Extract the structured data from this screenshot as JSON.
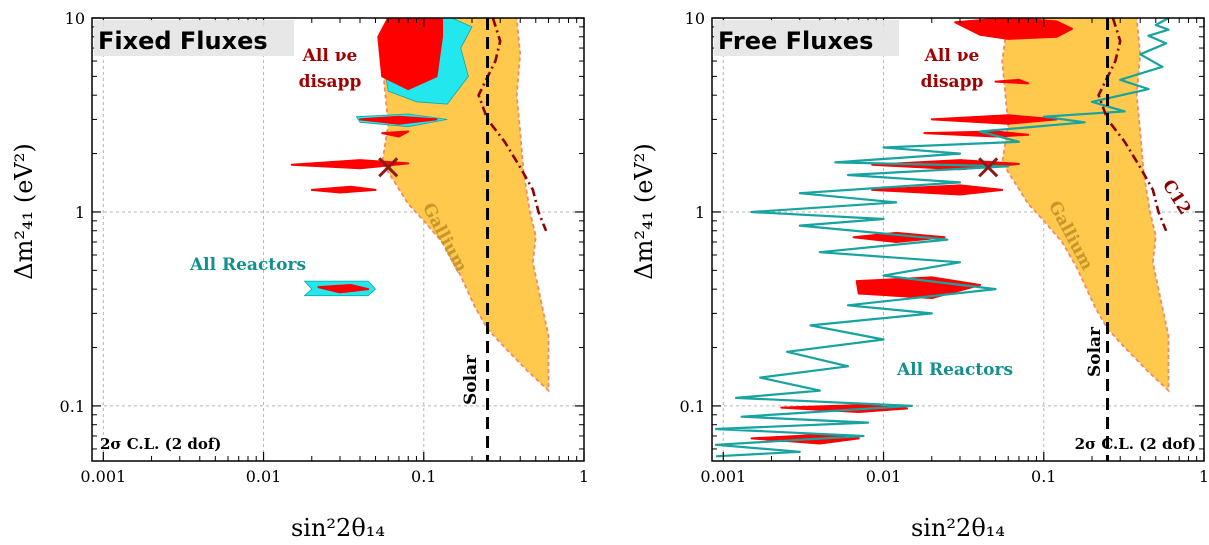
{
  "colors": {
    "gallium_fill": "#ffc94d",
    "gallium_edge": "#f08a6a",
    "disapp_fill": "#ff0000",
    "reactor_fill": "#22e8ee",
    "reactor_line": "#17a3a0",
    "solar_line": "#000000",
    "c12_line": "#8b0000",
    "best_fit": "#8b1a1a",
    "disapp_text": "#a00000",
    "reactor_text": "#138f8f",
    "gallium_text": "#c8962a"
  },
  "chart_data": [
    {
      "type": "contour",
      "title": "Fixed Fluxes",
      "xlabel": "sin²2θ₁₄",
      "ylabel": "Δm²₄₁ (eV²)",
      "xscale": "log",
      "yscale": "log",
      "xlim": [
        0.00085,
        1.0
      ],
      "ylim": [
        0.052,
        10
      ],
      "xticks": [
        "0.001",
        "0.01",
        "0.1",
        "1"
      ],
      "yticks": [
        "0.1",
        "1",
        "10"
      ],
      "grid": true,
      "cl_label": "2σ C.L. (2 dof)",
      "annotations": {
        "disapp_line1": "All νe",
        "disapp_line2": "disapp",
        "reactors": "All Reactors",
        "gallium": "Gallium",
        "solar": "Solar",
        "c12": ""
      },
      "solar_limit": 0.25,
      "best_fit": [
        0.06,
        1.7
      ],
      "gallium_region": [
        [
          0.06,
          10
        ],
        [
          0.055,
          6
        ],
        [
          0.06,
          2.8
        ],
        [
          0.055,
          1.8
        ],
        [
          0.08,
          1.1
        ],
        [
          0.1,
          0.9
        ],
        [
          0.13,
          0.7
        ],
        [
          0.16,
          0.52
        ],
        [
          0.21,
          0.32
        ],
        [
          0.25,
          0.25
        ],
        [
          0.32,
          0.2
        ],
        [
          0.45,
          0.15
        ],
        [
          0.6,
          0.12
        ],
        [
          0.6,
          0.15
        ],
        [
          0.6,
          0.23
        ],
        [
          0.52,
          0.4
        ],
        [
          0.48,
          0.55
        ],
        [
          0.5,
          0.75
        ],
        [
          0.46,
          1.0
        ],
        [
          0.42,
          1.6
        ],
        [
          0.4,
          2.6
        ],
        [
          0.38,
          4
        ],
        [
          0.4,
          6.5
        ],
        [
          0.38,
          10
        ]
      ],
      "c12_curve": [
        [
          0.27,
          10
        ],
        [
          0.3,
          7.6
        ],
        [
          0.28,
          6
        ],
        [
          0.22,
          4
        ],
        [
          0.25,
          3
        ],
        [
          0.32,
          2.3
        ],
        [
          0.4,
          1.7
        ],
        [
          0.48,
          1.3
        ],
        [
          0.52,
          1.0
        ],
        [
          0.58,
          0.8
        ]
      ],
      "reactor_regions": [
        [
          [
            0.06,
            10
          ],
          [
            0.15,
            10
          ],
          [
            0.2,
            9
          ],
          [
            0.17,
            7
          ],
          [
            0.19,
            5
          ],
          [
            0.14,
            3.6
          ],
          [
            0.09,
            3.7
          ],
          [
            0.06,
            4.2
          ],
          [
            0.055,
            6.5
          ]
        ],
        [
          [
            0.038,
            3.1
          ],
          [
            0.08,
            3.2
          ],
          [
            0.14,
            3.0
          ],
          [
            0.08,
            2.75
          ],
          [
            0.04,
            2.9
          ]
        ],
        [
          [
            0.018,
            0.44
          ],
          [
            0.045,
            0.44
          ],
          [
            0.05,
            0.4
          ],
          [
            0.045,
            0.37
          ],
          [
            0.018,
            0.37
          ],
          [
            0.02,
            0.4
          ]
        ]
      ],
      "disapp_regions": [
        [
          [
            0.06,
            10
          ],
          [
            0.13,
            10
          ],
          [
            0.13,
            8
          ],
          [
            0.12,
            5
          ],
          [
            0.08,
            4.3
          ],
          [
            0.055,
            5
          ],
          [
            0.052,
            8
          ]
        ],
        [
          [
            0.04,
            3.0
          ],
          [
            0.07,
            3.1
          ],
          [
            0.12,
            3.0
          ],
          [
            0.07,
            2.85
          ]
        ],
        [
          [
            0.055,
            2.55
          ],
          [
            0.08,
            2.6
          ],
          [
            0.07,
            2.45
          ]
        ],
        [
          [
            0.015,
            1.75
          ],
          [
            0.04,
            1.85
          ],
          [
            0.08,
            1.78
          ],
          [
            0.04,
            1.68
          ]
        ],
        [
          [
            0.02,
            1.3
          ],
          [
            0.035,
            1.35
          ],
          [
            0.05,
            1.3
          ],
          [
            0.03,
            1.26
          ]
        ],
        [
          [
            0.022,
            0.41
          ],
          [
            0.035,
            0.42
          ],
          [
            0.045,
            0.4
          ],
          [
            0.03,
            0.385
          ]
        ]
      ],
      "reactor_curve": []
    },
    {
      "type": "contour",
      "title": "Free Fluxes",
      "xlabel": "sin²2θ₁₄",
      "ylabel": "Δm²₄₁ (eV²)",
      "xscale": "log",
      "yscale": "log",
      "xlim": [
        0.00085,
        1.0
      ],
      "ylim": [
        0.052,
        10
      ],
      "xticks": [
        "0.001",
        "0.01",
        "0.1",
        "1"
      ],
      "yticks": [
        "0.1",
        "1",
        "10"
      ],
      "grid": true,
      "cl_label": "2σ C.L. (2 dof)",
      "annotations": {
        "disapp_line1": "All νe",
        "disapp_line2": "disapp",
        "reactors": "All Reactors",
        "gallium": "Gallium",
        "solar": "Solar",
        "c12": "C12"
      },
      "solar_limit": 0.25,
      "best_fit": [
        0.045,
        1.7
      ],
      "gallium_region": [
        [
          0.06,
          10
        ],
        [
          0.055,
          6
        ],
        [
          0.06,
          2.8
        ],
        [
          0.055,
          1.8
        ],
        [
          0.08,
          1.1
        ],
        [
          0.1,
          0.9
        ],
        [
          0.13,
          0.7
        ],
        [
          0.16,
          0.52
        ],
        [
          0.21,
          0.32
        ],
        [
          0.25,
          0.25
        ],
        [
          0.32,
          0.2
        ],
        [
          0.45,
          0.15
        ],
        [
          0.6,
          0.12
        ],
        [
          0.6,
          0.15
        ],
        [
          0.6,
          0.23
        ],
        [
          0.52,
          0.4
        ],
        [
          0.48,
          0.55
        ],
        [
          0.5,
          0.75
        ],
        [
          0.46,
          1.0
        ],
        [
          0.42,
          1.6
        ],
        [
          0.4,
          2.6
        ],
        [
          0.38,
          4
        ],
        [
          0.4,
          6.5
        ],
        [
          0.38,
          10
        ]
      ],
      "c12_curve": [
        [
          0.27,
          10
        ],
        [
          0.3,
          7.6
        ],
        [
          0.28,
          6
        ],
        [
          0.22,
          4
        ],
        [
          0.25,
          3
        ],
        [
          0.32,
          2.3
        ],
        [
          0.4,
          1.7
        ],
        [
          0.48,
          1.3
        ],
        [
          0.52,
          1.0
        ],
        [
          0.58,
          0.8
        ]
      ],
      "reactor_regions": [],
      "disapp_regions": [
        [
          [
            0.028,
            9.5
          ],
          [
            0.06,
            10
          ],
          [
            0.12,
            9.6
          ],
          [
            0.15,
            8.8
          ],
          [
            0.12,
            8.0
          ],
          [
            0.06,
            7.8
          ],
          [
            0.04,
            8.2
          ]
        ],
        [
          [
            0.05,
            4.7
          ],
          [
            0.07,
            4.8
          ],
          [
            0.08,
            4.6
          ]
        ],
        [
          [
            0.02,
            3.0
          ],
          [
            0.06,
            3.15
          ],
          [
            0.12,
            3.0
          ],
          [
            0.06,
            2.85
          ]
        ],
        [
          [
            0.018,
            2.55
          ],
          [
            0.05,
            2.6
          ],
          [
            0.08,
            2.5
          ],
          [
            0.05,
            2.45
          ]
        ],
        [
          [
            0.0085,
            1.75
          ],
          [
            0.03,
            1.85
          ],
          [
            0.07,
            1.77
          ],
          [
            0.03,
            1.66
          ]
        ],
        [
          [
            0.0085,
            1.3
          ],
          [
            0.03,
            1.37
          ],
          [
            0.055,
            1.3
          ],
          [
            0.03,
            1.23
          ]
        ],
        [
          [
            0.0065,
            0.74
          ],
          [
            0.012,
            0.78
          ],
          [
            0.024,
            0.74
          ],
          [
            0.012,
            0.7
          ]
        ],
        [
          [
            0.0068,
            0.44
          ],
          [
            0.02,
            0.46
          ],
          [
            0.04,
            0.42
          ],
          [
            0.02,
            0.36
          ],
          [
            0.007,
            0.38
          ]
        ],
        [
          [
            0.0023,
            0.098
          ],
          [
            0.007,
            0.101
          ],
          [
            0.014,
            0.097
          ],
          [
            0.007,
            0.093
          ]
        ],
        [
          [
            0.0015,
            0.068
          ],
          [
            0.004,
            0.071
          ],
          [
            0.007,
            0.068
          ],
          [
            0.004,
            0.064
          ]
        ]
      ],
      "reactor_curve": [
        [
          0.6,
          10
        ],
        [
          0.5,
          9.2
        ],
        [
          0.6,
          8.7
        ],
        [
          0.45,
          8.1
        ],
        [
          0.58,
          7.4
        ],
        [
          0.4,
          6.5
        ],
        [
          0.55,
          5.6
        ],
        [
          0.3,
          4.8
        ],
        [
          0.45,
          4.3
        ],
        [
          0.2,
          3.7
        ],
        [
          0.32,
          3.3
        ],
        [
          0.1,
          3.1
        ],
        [
          0.18,
          2.9
        ],
        [
          0.04,
          2.6
        ],
        [
          0.07,
          2.3
        ],
        [
          0.01,
          2.15
        ],
        [
          0.03,
          2.0
        ],
        [
          0.005,
          1.8
        ],
        [
          0.06,
          1.72
        ],
        [
          0.006,
          1.55
        ],
        [
          0.03,
          1.42
        ],
        [
          0.003,
          1.25
        ],
        [
          0.012,
          1.12
        ],
        [
          0.0015,
          1.0
        ],
        [
          0.01,
          0.92
        ],
        [
          0.003,
          0.85
        ],
        [
          0.025,
          0.72
        ],
        [
          0.004,
          0.62
        ],
        [
          0.03,
          0.55
        ],
        [
          0.01,
          0.47
        ],
        [
          0.05,
          0.4
        ],
        [
          0.006,
          0.33
        ],
        [
          0.02,
          0.3
        ],
        [
          0.0035,
          0.26
        ],
        [
          0.01,
          0.22
        ],
        [
          0.0025,
          0.19
        ],
        [
          0.006,
          0.16
        ],
        [
          0.0017,
          0.14
        ],
        [
          0.004,
          0.12
        ],
        [
          0.0012,
          0.11
        ],
        [
          0.015,
          0.1
        ],
        [
          0.0013,
          0.088
        ],
        [
          0.008,
          0.082
        ],
        [
          0.0009,
          0.076
        ],
        [
          0.0075,
          0.07
        ],
        [
          0.0009,
          0.063
        ],
        [
          0.003,
          0.058
        ],
        [
          0.0009,
          0.055
        ]
      ]
    }
  ]
}
